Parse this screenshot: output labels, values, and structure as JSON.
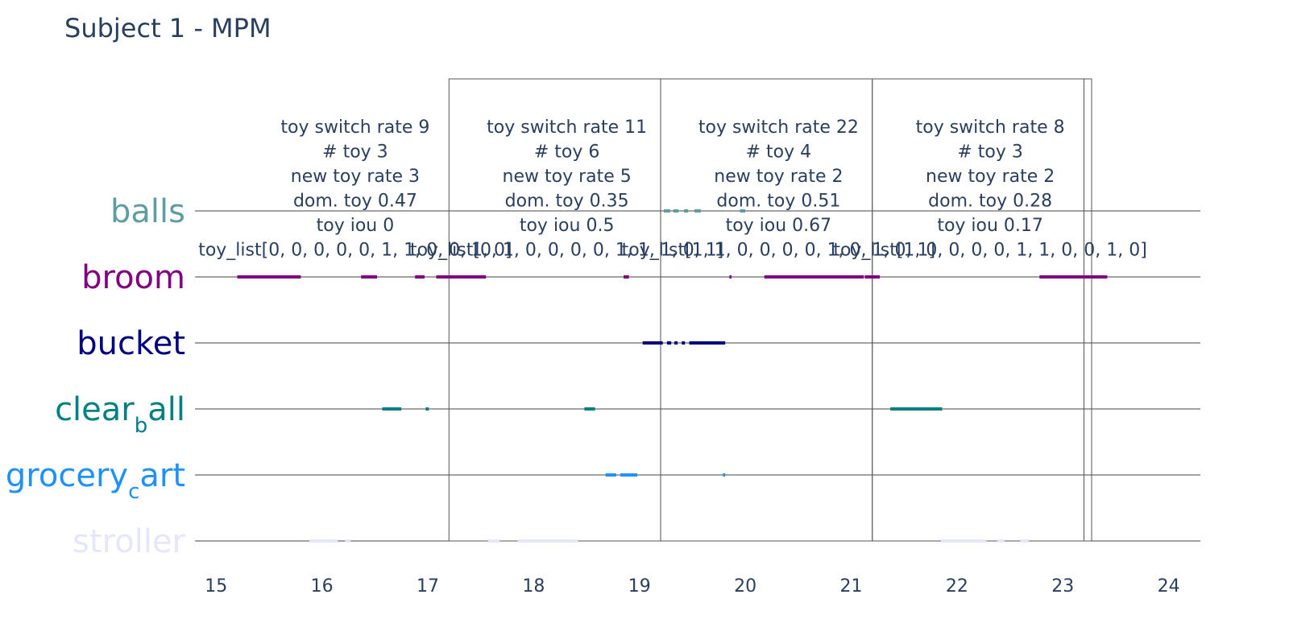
{
  "chart_data": {
    "type": "timeline",
    "title": "Subject 1 - MPM",
    "xlabel": "",
    "ylabel": "",
    "xlim": [
      14.8,
      24.3
    ],
    "x_ticks": [
      15,
      16,
      17,
      18,
      19,
      20,
      21,
      22,
      23,
      24
    ],
    "grid": true,
    "legend": "none",
    "categories": [
      {
        "name": "balls",
        "color": "#5f9ea0",
        "label_main": "balls",
        "label_sub": "",
        "label_tail": ""
      },
      {
        "name": "broom",
        "color": "#800080",
        "label_main": "broom",
        "label_sub": "",
        "label_tail": ""
      },
      {
        "name": "bucket",
        "color": "#000080",
        "label_main": "bucket",
        "label_sub": "",
        "label_tail": ""
      },
      {
        "name": "clear_ball",
        "color": "#008080",
        "label_main": "clear",
        "label_sub": "b",
        "label_tail": "all"
      },
      {
        "name": "grocery_cart",
        "color": "#1e90ff",
        "label_main": "grocery",
        "label_sub": "c",
        "label_tail": "art"
      },
      {
        "name": "stroller",
        "color": "#e6e6fa",
        "label_main": "stroller",
        "label_sub": "",
        "label_tail": ""
      }
    ],
    "series": [
      {
        "category": "balls",
        "intervals": [
          [
            19.23,
            19.29
          ],
          [
            19.32,
            19.37
          ],
          [
            19.42,
            19.46
          ],
          [
            19.52,
            19.58
          ],
          [
            19.95,
            20.0
          ]
        ]
      },
      {
        "category": "broom",
        "intervals": [
          [
            15.2,
            15.8
          ],
          [
            16.37,
            16.52
          ],
          [
            16.88,
            16.97
          ],
          [
            17.08,
            17.55
          ],
          [
            18.85,
            18.9
          ],
          [
            19.85,
            19.87
          ],
          [
            20.18,
            21.12
          ],
          [
            21.13,
            21.27
          ],
          [
            22.78,
            23.42
          ]
        ]
      },
      {
        "category": "bucket",
        "intervals": [
          [
            19.03,
            19.22
          ],
          [
            19.26,
            19.3
          ],
          [
            19.33,
            19.36
          ],
          [
            19.4,
            19.43
          ],
          [
            19.47,
            19.81
          ]
        ]
      },
      {
        "category": "clear_ball",
        "intervals": [
          [
            16.57,
            16.75
          ],
          [
            16.98,
            17.01
          ],
          [
            18.48,
            18.58
          ],
          [
            21.37,
            21.86
          ]
        ]
      },
      {
        "category": "grocery_cart",
        "intervals": [
          [
            18.68,
            18.78
          ],
          [
            18.82,
            18.98
          ],
          [
            19.79,
            19.81
          ]
        ]
      },
      {
        "category": "stroller",
        "intervals": [
          [
            15.88,
            16.15
          ],
          [
            16.22,
            16.27
          ],
          [
            17.57,
            17.68
          ],
          [
            17.85,
            18.42
          ],
          [
            21.85,
            22.28
          ],
          [
            22.38,
            22.45
          ],
          [
            22.6,
            22.68
          ]
        ]
      }
    ],
    "windows": [
      {
        "x0": 17.2,
        "x1": 19.2
      },
      {
        "x0": 19.2,
        "x1": 21.2
      },
      {
        "x0": 21.2,
        "x1": 23.2
      },
      {
        "x0": 23.2,
        "x1": 25.2
      }
    ],
    "annotations": [
      {
        "x": 16.2,
        "lines": [
          "toy switch rate 9",
          "# toy 3",
          "new toy rate 3",
          "dom. toy 0.47",
          "toy iou 0",
          "toy_list[0, 0, 0, 0, 0, 1, 1, 0, 0, 1, 0]"
        ]
      },
      {
        "x": 18.2,
        "lines": [
          "toy switch rate 11",
          "# toy 6",
          "new toy rate 5",
          "dom. toy 0.35",
          "toy iou 0.5",
          "toy_list[0, 1, 0, 0, 0, 0, 1, 1, 1, 0, 1]"
        ]
      },
      {
        "x": 20.2,
        "lines": [
          "toy switch rate 22",
          "# toy 4",
          "new toy rate 2",
          "dom. toy 0.51",
          "toy iou 0.67",
          "toy_list[1, 1, 0, 0, 0, 0, 1, 0, 1, 0, 1]"
        ]
      },
      {
        "x": 22.2,
        "lines": [
          "toy switch rate 8",
          "# toy 3",
          "new toy rate 2",
          "dom. toy 0.28",
          "toy iou 0.17",
          "toy_list[1, 0, 0, 0, 0, 1, 1, 0, 0, 1, 0]"
        ]
      }
    ]
  }
}
